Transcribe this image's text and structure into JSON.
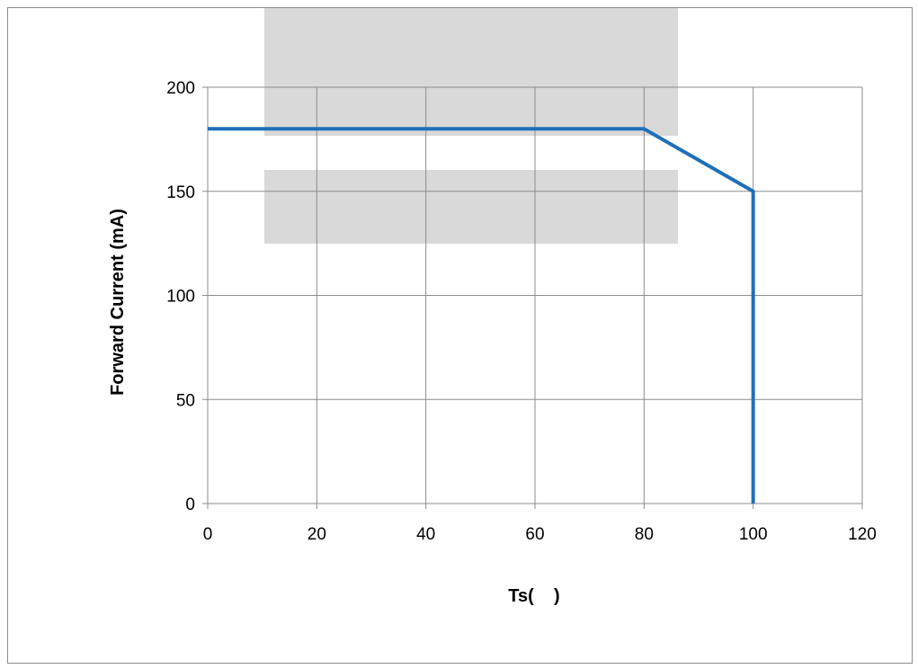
{
  "chart_data": {
    "type": "line",
    "xlabel": "Ts(    )",
    "ylabel": "Forward Current (mA)",
    "xlim": [
      0,
      120
    ],
    "ylim": [
      0,
      200
    ],
    "xticks": [
      0,
      20,
      40,
      60,
      80,
      100,
      120
    ],
    "yticks": [
      0,
      50,
      100,
      150,
      200
    ],
    "grid": true,
    "legend": "none",
    "series": [
      {
        "color": "#1f6fb8",
        "points": [
          [
            0,
            180
          ],
          [
            80,
            180
          ],
          [
            100,
            150
          ],
          [
            100,
            0
          ]
        ]
      }
    ]
  }
}
